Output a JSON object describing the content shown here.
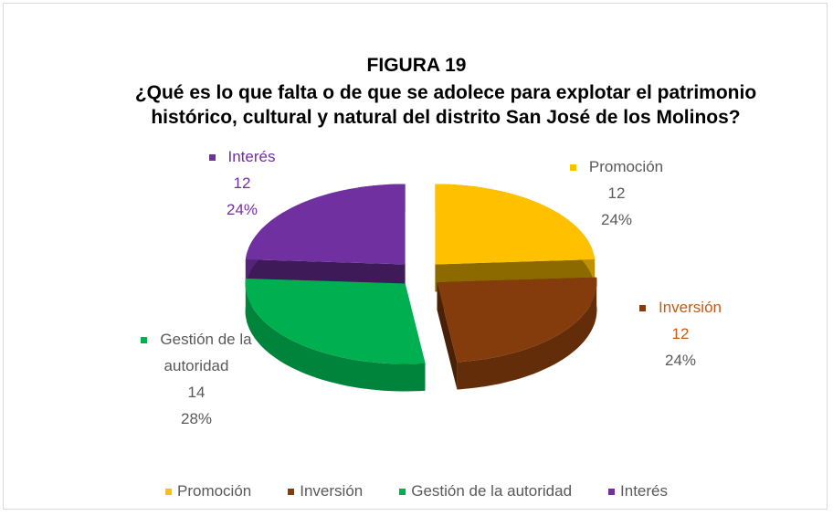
{
  "chart_data": {
    "type": "pie3d",
    "title": "FIGURA 19",
    "subtitle": "¿Qué es lo que falta o de que se adolece para explotar el patrimonio histórico, cultural y natural del distrito San José de los Molinos?",
    "categories": [
      "Promoción",
      "Inversión",
      "Gestión de la autoridad",
      "Interés"
    ],
    "values": [
      12,
      12,
      14,
      12
    ],
    "percentages": [
      24,
      24,
      28,
      24
    ],
    "percentage_labels": [
      "24%",
      "24%",
      "28%",
      "24%"
    ],
    "colors": [
      "#FFC000",
      "#843C0C",
      "#00B050",
      "#7030A0"
    ],
    "legend": "bottom"
  }
}
